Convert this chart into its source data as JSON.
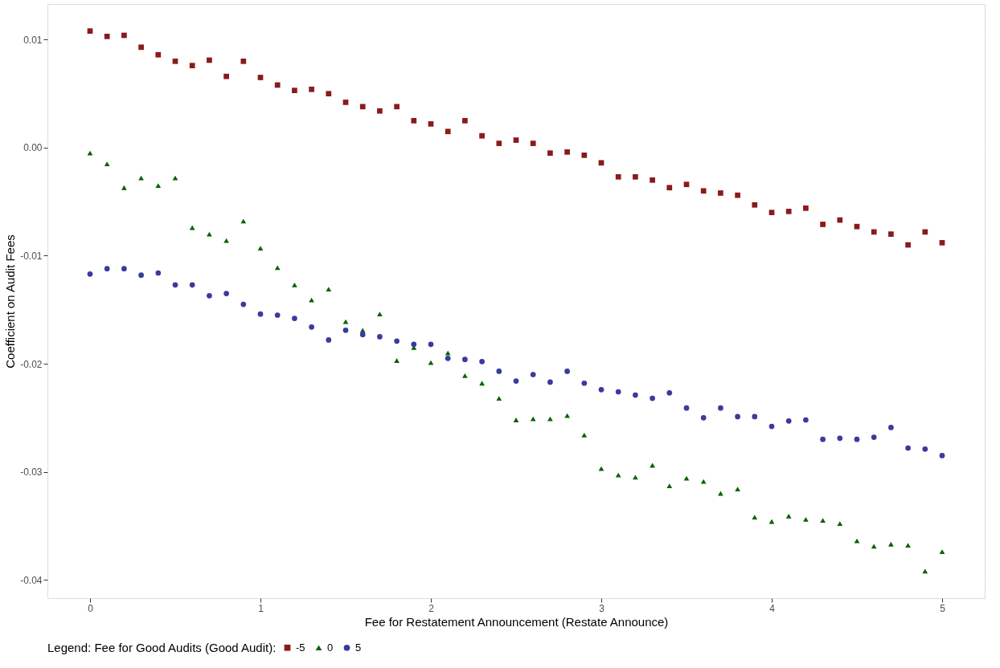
{
  "chart_data": {
    "type": "scatter",
    "xlabel": "Fee for Restatement Announcement (Restate Announce)",
    "ylabel": "Coefficient on Audit Fees",
    "legend_title": "Legend: Fee for Good Audits (Good Audit):",
    "x": [
      0,
      0.1,
      0.2,
      0.3,
      0.4,
      0.5,
      0.6,
      0.7,
      0.8,
      0.9,
      1,
      1.1,
      1.2,
      1.3,
      1.4,
      1.5,
      1.6,
      1.7,
      1.8,
      1.9,
      2,
      2.1,
      2.2,
      2.3,
      2.4,
      2.5,
      2.6,
      2.7,
      2.8,
      2.9,
      3,
      3.1,
      3.2,
      3.3,
      3.4,
      3.5,
      3.6,
      3.7,
      3.8,
      3.9,
      4,
      4.1,
      4.2,
      4.3,
      4.4,
      4.5,
      4.6,
      4.7,
      4.8,
      4.9,
      5
    ],
    "series": [
      {
        "name": "-5",
        "color": "#8b1a1a",
        "marker": "square",
        "values": [
          0.0108,
          0.0103,
          0.0104,
          0.0093,
          0.0086,
          0.008,
          0.0076,
          0.0081,
          0.0066,
          0.008,
          0.0065,
          0.0058,
          0.0053,
          0.0054,
          0.005,
          0.0042,
          0.0038,
          0.0034,
          0.0038,
          0.0025,
          0.0022,
          0.0015,
          0.0025,
          0.0011,
          0.0004,
          0.0007,
          0.0004,
          -0.0005,
          -0.0004,
          -0.0007,
          -0.0014,
          -0.0027,
          -0.0027,
          -0.003,
          -0.0037,
          -0.0034,
          -0.004,
          -0.0042,
          -0.0044,
          -0.0053,
          -0.006,
          -0.0059,
          -0.0056,
          -0.0071,
          -0.0067,
          -0.0073,
          -0.0078,
          -0.008,
          -0.009,
          -0.0078,
          -0.0088
        ]
      },
      {
        "name": "0",
        "color": "#006400",
        "marker": "triangle",
        "values": [
          -0.0005,
          -0.0015,
          -0.0037,
          -0.0028,
          -0.0035,
          -0.0028,
          -0.0074,
          -0.008,
          -0.0086,
          -0.0068,
          -0.0093,
          -0.0111,
          -0.0127,
          -0.0141,
          -0.0131,
          -0.0161,
          -0.0169,
          -0.0154,
          -0.0197,
          -0.0185,
          -0.0199,
          -0.019,
          -0.0211,
          -0.0218,
          -0.0232,
          -0.0252,
          -0.0251,
          -0.0251,
          -0.0248,
          -0.0266,
          -0.0297,
          -0.0303,
          -0.0305,
          -0.0294,
          -0.0313,
          -0.0306,
          -0.0309,
          -0.032,
          -0.0316,
          -0.0342,
          -0.0346,
          -0.0341,
          -0.0344,
          -0.0345,
          -0.0348,
          -0.0364,
          -0.0369,
          -0.0367,
          -0.0368,
          -0.0392,
          -0.0374
        ]
      },
      {
        "name": "5",
        "color": "#3a3a9f",
        "marker": "circle",
        "values": [
          -0.0117,
          -0.0112,
          -0.0112,
          -0.0118,
          -0.0116,
          -0.0127,
          -0.0127,
          -0.0137,
          -0.0135,
          -0.0145,
          -0.0154,
          -0.0155,
          -0.0158,
          -0.0166,
          -0.0178,
          -0.0169,
          -0.0173,
          -0.0175,
          -0.0179,
          -0.0182,
          -0.0182,
          -0.0195,
          -0.0196,
          -0.0198,
          -0.0207,
          -0.0216,
          -0.021,
          -0.0217,
          -0.0207,
          -0.0218,
          -0.0224,
          -0.0226,
          -0.0229,
          -0.0232,
          -0.0227,
          -0.0241,
          -0.025,
          -0.0241,
          -0.0249,
          -0.0249,
          -0.0258,
          -0.0253,
          -0.0252,
          -0.027,
          -0.0269,
          -0.027,
          -0.0268,
          -0.0259,
          -0.0278,
          -0.0279,
          -0.0285
        ]
      }
    ],
    "xlim": [
      -0.25,
      5.25
    ],
    "xticks": [
      0,
      1,
      2,
      3,
      4,
      5
    ],
    "ylim": [
      -0.0417,
      0.0133
    ],
    "yticks": [
      {
        "value": -0.04,
        "label": "-0.04"
      },
      {
        "value": -0.03,
        "label": "-0.03"
      },
      {
        "value": -0.02,
        "label": "-0.02"
      },
      {
        "value": -0.01,
        "label": "-0.01"
      },
      {
        "value": 0,
        "label": "0.00"
      },
      {
        "value": 0.01,
        "label": "0.01"
      }
    ],
    "grid": true,
    "legend": "bottom"
  }
}
